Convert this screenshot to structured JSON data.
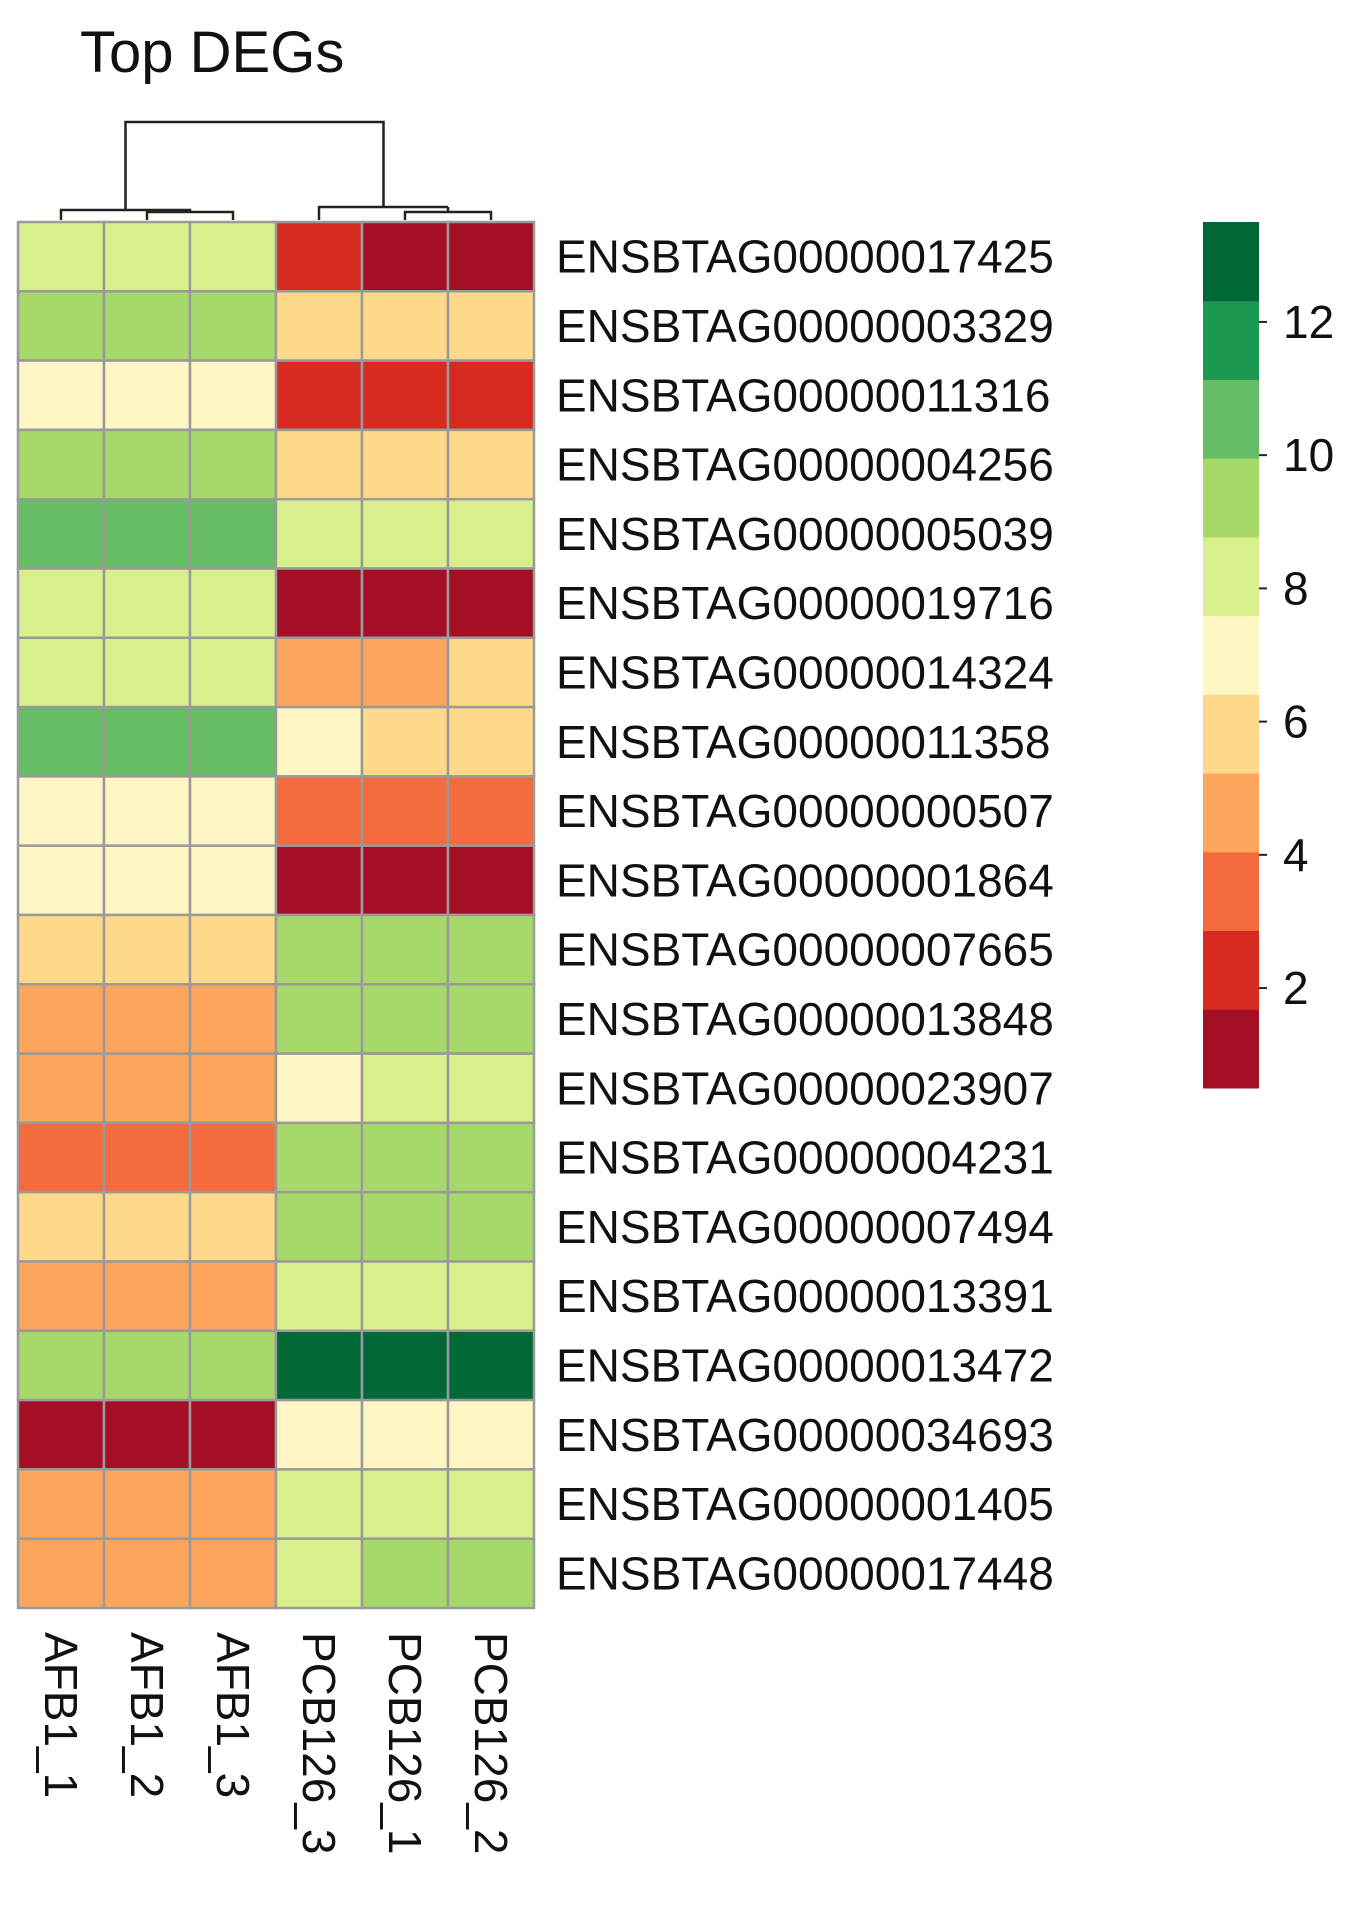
{
  "chart_data": {
    "type": "heatmap",
    "title": "Top DEGs",
    "columns": [
      "AFB1_1",
      "AFB1_2",
      "AFB1_3",
      "PCB126_3",
      "PCB126_1",
      "PCB126_2"
    ],
    "rows": [
      "ENSBTAG00000017425",
      "ENSBTAG00000003329",
      "ENSBTAG00000011316",
      "ENSBTAG00000004256",
      "ENSBTAG00000005039",
      "ENSBTAG00000019716",
      "ENSBTAG00000014324",
      "ENSBTAG00000011358",
      "ENSBTAG00000000507",
      "ENSBTAG00000001864",
      "ENSBTAG00000007665",
      "ENSBTAG00000013848",
      "ENSBTAG00000023907",
      "ENSBTAG00000004231",
      "ENSBTAG00000007494",
      "ENSBTAG00000013391",
      "ENSBTAG00000013472",
      "ENSBTAG00000034693",
      "ENSBTAG00000001405",
      "ENSBTAG00000017448"
    ],
    "values": [
      [
        8.2,
        8.3,
        8.3,
        2.1,
        1.0,
        1.0
      ],
      [
        9.2,
        9.2,
        9.3,
        6.3,
        6.3,
        6.2
      ],
      [
        7.5,
        7.5,
        7.4,
        2.2,
        2.2,
        2.3
      ],
      [
        9.3,
        9.2,
        9.2,
        6.3,
        6.3,
        6.2
      ],
      [
        10.5,
        10.6,
        10.7,
        8.3,
        8.2,
        8.2
      ],
      [
        8.2,
        8.1,
        8.1,
        1.0,
        1.0,
        1.0
      ],
      [
        8.3,
        8.2,
        8.2,
        4.8,
        4.8,
        6.1
      ],
      [
        10.6,
        10.7,
        10.7,
        7.3,
        6.3,
        6.2
      ],
      [
        7.4,
        7.4,
        7.5,
        3.2,
        3.3,
        3.2
      ],
      [
        7.4,
        7.4,
        7.4,
        1.0,
        1.0,
        1.0
      ],
      [
        6.3,
        6.3,
        6.3,
        9.2,
        9.2,
        9.2
      ],
      [
        4.8,
        4.8,
        4.9,
        9.2,
        9.1,
        9.2
      ],
      [
        4.8,
        4.8,
        4.8,
        7.3,
        8.3,
        8.3
      ],
      [
        3.3,
        3.2,
        3.3,
        9.2,
        9.1,
        9.3
      ],
      [
        6.3,
        6.3,
        6.3,
        9.2,
        9.2,
        9.2
      ],
      [
        4.9,
        4.8,
        4.8,
        8.3,
        8.2,
        8.2
      ],
      [
        9.2,
        9.2,
        9.2,
        13.5,
        13.5,
        13.5
      ],
      [
        1.0,
        1.0,
        1.0,
        7.4,
        7.4,
        7.3
      ],
      [
        4.9,
        4.8,
        4.8,
        8.3,
        8.3,
        8.3
      ],
      [
        4.9,
        4.8,
        4.8,
        8.3,
        9.2,
        9.2
      ]
    ],
    "legend": {
      "ticks": [
        2,
        4,
        6,
        8,
        10,
        12
      ],
      "range": [
        0.5,
        13.5
      ],
      "colors": [
        "#a50f26",
        "#d72b22",
        "#f46b3d",
        "#fca55c",
        "#fed98a",
        "#fff6c3",
        "#d9ef8b",
        "#a6d86a",
        "#66bd63",
        "#1a9850",
        "#006837"
      ]
    },
    "grid_color": "#9a9a9a",
    "legend_position": "right"
  }
}
